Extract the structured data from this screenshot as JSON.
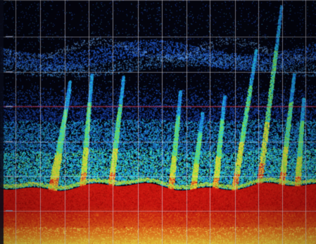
{
  "scene": {
    "description_free": true,
    "colors": {
      "background": "#03040e",
      "grid": "#d8d8e4",
      "depth_band": "#cc3a52",
      "bottom_red": "#c4140f",
      "bottom_orange": "#e8521a",
      "bottom_yellow": "#f2c233",
      "scatter_blue": "#1e5fd0",
      "scatter_cyan": "#29c8e0",
      "plume_green": "#7ee04a",
      "plume_yellow": "#e9d43a",
      "plume_red": "#d8301a"
    },
    "plumes": [
      {
        "base": 0.16,
        "top": 0.36,
        "tilt": 0.06
      },
      {
        "base": 0.17,
        "top": 0.33,
        "tilt": 0.05
      },
      {
        "base": 0.26,
        "top": 0.3,
        "tilt": 0.03
      },
      {
        "base": 0.35,
        "top": 0.31,
        "tilt": 0.04
      },
      {
        "base": 0.54,
        "top": 0.37,
        "tilt": 0.03
      },
      {
        "base": 0.61,
        "top": 0.46,
        "tilt": 0.03
      },
      {
        "base": 0.68,
        "top": 0.39,
        "tilt": 0.03
      },
      {
        "base": 0.74,
        "top": 0.2,
        "tilt": 0.07
      },
      {
        "base": 0.82,
        "top": 0.02,
        "tilt": 0.07
      },
      {
        "base": 0.89,
        "top": 0.3,
        "tilt": 0.04
      },
      {
        "base": 0.94,
        "top": 0.4,
        "tilt": 0.02
      }
    ]
  }
}
